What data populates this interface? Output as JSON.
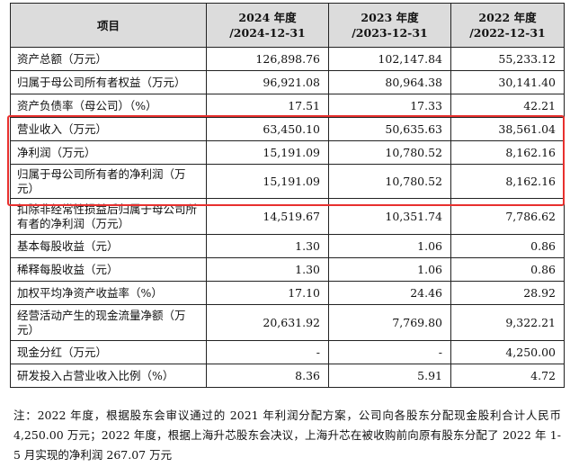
{
  "table": {
    "headers": [
      "项目",
      [
        "2024 年度",
        "/2024-12-31"
      ],
      [
        "2023 年度",
        "/2023-12-31"
      ],
      [
        "2022 年度",
        "/2022-12-31"
      ]
    ],
    "rows": [
      {
        "label": "资产总额（万元）",
        "values": [
          "126,898.76",
          "102,147.84",
          "55,233.12"
        ]
      },
      {
        "label": "归属于母公司所有者权益（万元）",
        "values": [
          "96,921.08",
          "80,964.38",
          "30,141.40"
        ]
      },
      {
        "label": "资产负债率（母公司）（%）",
        "values": [
          "17.51",
          "17.33",
          "42.21"
        ]
      },
      {
        "label": "营业收入（万元）",
        "values": [
          "63,450.10",
          "50,635.63",
          "38,561.04"
        ]
      },
      {
        "label": "净利润（万元）",
        "values": [
          "15,191.09",
          "10,780.52",
          "8,162.16"
        ]
      },
      {
        "label": "归属于母公司所有者的净利润（万元）",
        "values": [
          "15,191.09",
          "10,780.52",
          "8,162.16"
        ]
      },
      {
        "label": "扣除非经常性损益后归属于母公司所有者的净利润（万元）",
        "values": [
          "14,519.67",
          "10,351.74",
          "7,786.62"
        ]
      },
      {
        "label": "基本每股收益（元）",
        "values": [
          "1.30",
          "1.06",
          "0.86"
        ]
      },
      {
        "label": "稀释每股收益（元）",
        "values": [
          "1.30",
          "1.06",
          "0.86"
        ]
      },
      {
        "label": "加权平均净资产收益率（%）",
        "values": [
          "17.10",
          "24.46",
          "28.92"
        ]
      },
      {
        "label": "经营活动产生的现金流量净额（万元）",
        "values": [
          "20,631.92",
          "7,769.80",
          "9,322.21"
        ]
      },
      {
        "label": "现金分红（万元）",
        "values": [
          "-",
          "-",
          "4,250.00"
        ]
      },
      {
        "label": "研发投入占营业收入比例（%）",
        "values": [
          "8.36",
          "5.91",
          "4.72"
        ]
      }
    ],
    "highlight_color": "#e8302e"
  },
  "note": "注：2022 年度，根据股东会审议通过的 2021 年利润分配方案，公司向各股东分配现金股利合计人民币 4,250.00 万元；2022 年度，根据上海升芯股东会决议，上海升芯在被收购前向原有股东分配了 2022 年 1-5 月实现的净利润 267.07 万元"
}
